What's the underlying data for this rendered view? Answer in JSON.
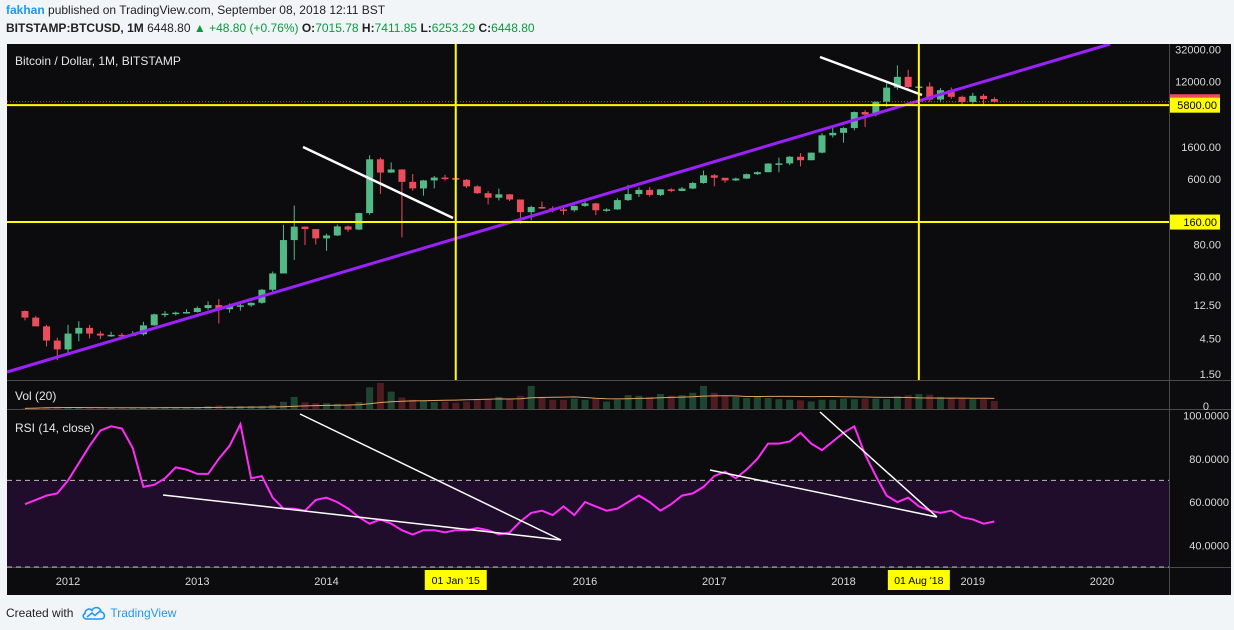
{
  "header": {
    "author": "fakhan",
    "published_text": "published on TradingView.com, September 08, 2018 12:11 BST",
    "symbol_line": "BITSTAMP:BTCUSD, 1M",
    "last": "6448.80",
    "change": "+48.80 (+0.76%)",
    "o_label": "O:",
    "o_value": "7015.78",
    "h_label": "H:",
    "h_value": "7411.85",
    "l_label": "L:",
    "l_value": "6253.29",
    "c_label": "C:",
    "c_value": "6448.80"
  },
  "footer": {
    "created_with": "Created with",
    "brand": "TradingView",
    "brand_icon": "tradingview-cloud-icon"
  },
  "colors": {
    "background": "#0c0b0e",
    "bull": "#53b987",
    "bear": "#eb4d5c",
    "trendline": "#9b22ff",
    "hline": "#ffff00",
    "rsi": "#ff2df8",
    "rsi_band": "#1f0d2b",
    "white_line": "#ffffff"
  },
  "chart_data": [
    {
      "type": "candlestick",
      "title": "Bitcoin / Dollar, 1M, BITSTAMP",
      "scale": "log",
      "ylim": [
        1.25,
        38000
      ],
      "x_ticks": [
        "2012",
        "2013",
        "2014",
        "2016",
        "2017",
        "2018",
        "2019",
        "2020"
      ],
      "x_ticks_years": [
        2012,
        2013,
        2014,
        2016,
        2017,
        2018,
        2019,
        2020
      ],
      "highlighted_x_labels": [
        "01 Jan '15",
        "01 Aug '18"
      ],
      "highlighted_x_years": [
        2015.0,
        2018.583
      ],
      "y_ticks": [
        "32000.00",
        "12000.00",
        "1600.00",
        "600.00",
        "80.00",
        "30.00",
        "12.50",
        "4.50",
        "1.50"
      ],
      "y_tick_values": [
        32000,
        12000,
        1600,
        600,
        80,
        30,
        12.5,
        4.5,
        1.5
      ],
      "price_labels": [
        "6448.80",
        "5800.00",
        "160.00"
      ],
      "price_label_values": [
        6448.8,
        5800,
        160
      ],
      "horizontal_lines": [
        5800,
        160
      ],
      "vertical_lines": [
        2015.0,
        2018.583
      ],
      "start_year": 2011.667,
      "candles": [
        [
          10.4,
          8.5,
          10.6,
          7.8
        ],
        [
          8.5,
          6.5,
          8.9,
          6.5
        ],
        [
          6.5,
          4.2,
          6.8,
          3.5
        ],
        [
          4.2,
          3.2,
          4.6,
          2.3
        ],
        [
          3.2,
          5.2,
          6.8,
          2.7
        ],
        [
          5.2,
          6.2,
          7.6,
          4.1
        ],
        [
          6.2,
          5.2,
          6.8,
          4.5
        ],
        [
          5.2,
          4.9,
          5.6,
          4.4
        ],
        [
          4.9,
          5.0,
          5.5,
          4.7
        ],
        [
          5.0,
          4.9,
          5.3,
          4.6
        ],
        [
          4.9,
          5.1,
          5.6,
          4.8
        ],
        [
          5.1,
          6.7,
          7.5,
          4.9
        ],
        [
          6.7,
          9.4,
          9.6,
          6.6
        ],
        [
          9.4,
          9.6,
          10.4,
          8.6
        ],
        [
          9.6,
          9.9,
          10.2,
          9.1
        ],
        [
          9.9,
          10.1,
          11.0,
          9.6
        ],
        [
          10.1,
          11.4,
          12.0,
          9.9
        ],
        [
          11.4,
          12.5,
          14.0,
          10.8
        ],
        [
          12.5,
          11.0,
          15.0,
          7.1
        ],
        [
          11.0,
          12.4,
          13.1,
          9.9
        ],
        [
          12.4,
          12.4,
          13.3,
          10.5
        ],
        [
          12.4,
          13.4,
          13.5,
          11.8
        ],
        [
          13.4,
          20.0,
          20.5,
          13.0
        ],
        [
          20.0,
          33.0,
          35.0,
          19.0
        ],
        [
          33.0,
          92.0,
          147.0,
          33.0
        ],
        [
          92.0,
          139.0,
          266.0,
          50.0
        ],
        [
          139.0,
          129.0,
          140.0,
          79.0
        ],
        [
          129.0,
          97.0,
          129.0,
          80.0
        ],
        [
          97.0,
          106.0,
          112.0,
          66.0
        ],
        [
          106.0,
          140.0,
          148.0,
          104.0
        ],
        [
          140.0,
          127.0,
          144.0,
          119.0
        ],
        [
          127.0,
          211.0,
          213.0,
          125.0
        ],
        [
          211.0,
          1100.0,
          1242.0,
          201.0
        ],
        [
          1100.0,
          732.0,
          1163.0,
          380.0
        ],
        [
          732.0,
          805.0,
          1000.0,
          725.0
        ],
        [
          805.0,
          550.0,
          810.0,
          100.0
        ],
        [
          550.0,
          450.0,
          700.0,
          420.0
        ],
        [
          450.0,
          575.0,
          585.0,
          360.0
        ],
        [
          575.0,
          628.0,
          660.0,
          450.0
        ],
        [
          628.0,
          620.0,
          685.0,
          570.0
        ],
        [
          620.0,
          586.0,
          630.0,
          565.0
        ],
        [
          586.0,
          479.0,
          600.0,
          455.0
        ],
        [
          479.0,
          388.0,
          495.0,
          380.0
        ],
        [
          388.0,
          338.0,
          415.0,
          275.0
        ],
        [
          338.0,
          375.0,
          448.0,
          310.0
        ],
        [
          375.0,
          320.0,
          380.0,
          305.0
        ],
        [
          320.0,
          217.0,
          320.0,
          152.0
        ],
        [
          217.0,
          254.0,
          265.0,
          170.0
        ],
        [
          254.0,
          244.0,
          300.0,
          240.0
        ],
        [
          244.0,
          236.0,
          260.0,
          215.0
        ],
        [
          236.0,
          230.0,
          245.0,
          200.0
        ],
        [
          230.0,
          263.0,
          267.0,
          220.0
        ],
        [
          263.0,
          284.0,
          318.0,
          255.0
        ],
        [
          284.0,
          230.0,
          290.0,
          198.0
        ],
        [
          230.0,
          236.0,
          245.0,
          220.0
        ],
        [
          236.0,
          314.0,
          333.0,
          233.0
        ],
        [
          314.0,
          378.0,
          502.0,
          306.0
        ],
        [
          378.0,
          430.0,
          465.0,
          345.0
        ],
        [
          430.0,
          368.0,
          468.0,
          350.0
        ],
        [
          368.0,
          437.0,
          439.0,
          355.0
        ],
        [
          437.0,
          416.0,
          452.0,
          401.0
        ],
        [
          416.0,
          448.0,
          470.0,
          413.0
        ],
        [
          448.0,
          531.0,
          550.0,
          440.0
        ],
        [
          531.0,
          673.0,
          780.0,
          520.0
        ],
        [
          673.0,
          624.0,
          700.0,
          480.0
        ],
        [
          624.0,
          575.0,
          615.0,
          535.0
        ],
        [
          575.0,
          609.0,
          627.0,
          565.0
        ],
        [
          609.0,
          697.0,
          710.0,
          600.0
        ],
        [
          697.0,
          741.0,
          758.0,
          680.0
        ],
        [
          741.0,
          965.0,
          980.0,
          735.0
        ],
        [
          965.0,
          970.0,
          1160.0,
          740.0
        ],
        [
          970.0,
          1190.0,
          1215.0,
          920.0
        ],
        [
          1190.0,
          1070.0,
          1330.0,
          885.0
        ],
        [
          1070.0,
          1350.0,
          1350.0,
          1070.0
        ],
        [
          1350.0,
          2300.0,
          2450.0,
          1320.0
        ],
        [
          2300.0,
          2480.0,
          2990.0,
          2150.0
        ],
        [
          2480.0,
          2870.0,
          2950.0,
          1830.0
        ],
        [
          2870.0,
          4700.0,
          4780.0,
          2680.0
        ],
        [
          4700.0,
          4340.0,
          4980.0,
          2970.0
        ],
        [
          4340.0,
          6450.0,
          6470.0,
          4110.0
        ],
        [
          6450.0,
          9950.0,
          11400.0,
          5500.0
        ],
        [
          9950.0,
          13850.0,
          19700.0,
          9300.0
        ],
        [
          13850.0,
          10150.0,
          17200.0,
          9000.0
        ],
        [
          10150.0,
          10300.0,
          11800.0,
          6000.0
        ],
        [
          10300.0,
          6900.0,
          11700.0,
          6450.0
        ],
        [
          6900.0,
          9200.0,
          9800.0,
          6500.0
        ],
        [
          9200.0,
          7500.0,
          9990.0,
          7050.0
        ],
        [
          7500.0,
          6400.0,
          7780.0,
          5800.0
        ],
        [
          6400.0,
          7730.0,
          8480.0,
          6070.0
        ],
        [
          7730.0,
          7015.0,
          8200.0,
          5880.0
        ],
        [
          7015.0,
          6448.0,
          7411.0,
          6253.0
        ]
      ]
    },
    {
      "type": "bar",
      "title": "Vol (20)",
      "y_ticks": [
        "0"
      ],
      "values": [
        0.2,
        0.4,
        0.6,
        0.8,
        0.6,
        0.5,
        0.4,
        0.3,
        0.3,
        0.3,
        0.4,
        0.5,
        0.7,
        0.6,
        0.6,
        0.6,
        0.7,
        1.0,
        1.2,
        0.9,
        1.0,
        1.0,
        1.1,
        1.4,
        2.5,
        4.2,
        2.3,
        2.0,
        2.0,
        1.8,
        1.5,
        2.4,
        7.5,
        9.0,
        6.0,
        4.0,
        3.2,
        2.8,
        2.4,
        2.5,
        2.2,
        2.6,
        3.4,
        3.6,
        4.2,
        3.6,
        4.6,
        8.0,
        4.2,
        3.2,
        3.2,
        3.6,
        3.2,
        3.6,
        2.6,
        3.2,
        4.8,
        4.6,
        4.2,
        5.2,
        4.6,
        4.8,
        5.6,
        8.0,
        5.6,
        4.4,
        4.2,
        3.8,
        4.2,
        3.8,
        3.4,
        3.2,
        3.0,
        2.6,
        3.2,
        3.2,
        3.6,
        3.4,
        3.6,
        3.6,
        3.4,
        4.4,
        4.8,
        5.2,
        5.0,
        4.2,
        4.0,
        3.6,
        3.4,
        3.4,
        2.8
      ]
    },
    {
      "type": "line",
      "title": "RSI (14, close)",
      "y_ticks": [
        "100.0000",
        "80.0000",
        "60.0000",
        "40.0000"
      ],
      "y_tick_values": [
        100,
        80,
        60,
        40
      ],
      "ylim": [
        30,
        103
      ],
      "band": [
        30,
        70
      ],
      "series": [
        {
          "values": [
            59,
            61,
            63,
            64,
            70,
            78,
            86,
            93,
            95,
            94,
            85,
            67,
            68,
            71,
            76,
            75,
            73,
            73,
            80,
            86,
            96,
            71,
            72,
            62,
            57,
            57,
            56,
            61,
            62,
            60,
            57,
            53,
            50,
            52,
            50,
            47,
            45,
            47,
            47,
            46,
            47,
            47,
            48,
            47,
            45,
            46,
            51,
            55,
            56,
            54,
            58,
            54,
            60,
            58,
            56,
            57,
            60,
            63,
            60,
            56,
            59,
            63,
            64,
            67,
            72,
            74,
            71,
            75,
            80,
            87,
            87,
            88,
            92,
            87,
            84,
            88,
            92,
            95,
            82,
            72,
            63,
            60,
            62,
            58,
            56,
            55,
            56,
            53,
            52,
            50,
            51
          ]
        }
      ]
    }
  ]
}
